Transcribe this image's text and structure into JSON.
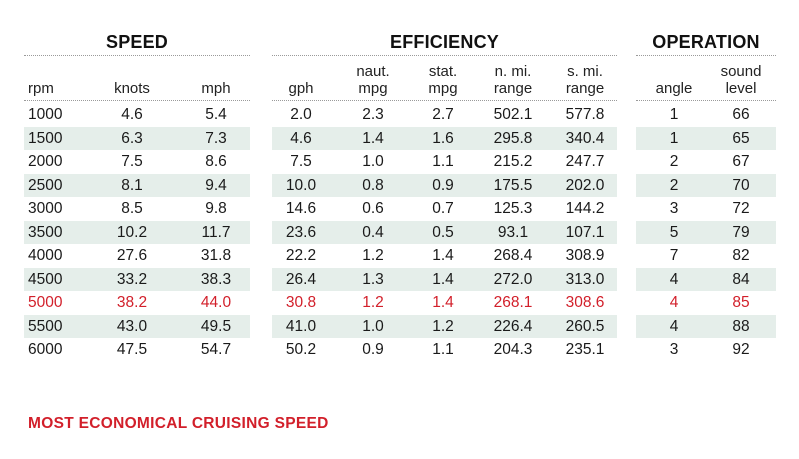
{
  "groups": {
    "speed": "SPEED",
    "efficiency": "EFFICIENCY",
    "operation": "OPERATION"
  },
  "columns": {
    "rpm": [
      "rpm"
    ],
    "knots": [
      "knots"
    ],
    "mph": [
      "mph"
    ],
    "gph": [
      "gph"
    ],
    "naut_mpg": [
      "naut.",
      "mpg"
    ],
    "stat_mpg": [
      "stat.",
      "mpg"
    ],
    "n_mi_range": [
      "n. mi.",
      "range"
    ],
    "s_mi_range": [
      "s. mi.",
      "range"
    ],
    "angle": [
      "angle"
    ],
    "sound_level": [
      "sound",
      "level"
    ]
  },
  "rows": [
    {
      "rpm": "1000",
      "knots": "4.6",
      "mph": "5.4",
      "gph": "2.0",
      "naut_mpg": "2.3",
      "stat_mpg": "2.7",
      "n_mi_range": "502.1",
      "s_mi_range": "577.8",
      "angle": "1",
      "sound_level": "66",
      "highlight": false
    },
    {
      "rpm": "1500",
      "knots": "6.3",
      "mph": "7.3",
      "gph": "4.6",
      "naut_mpg": "1.4",
      "stat_mpg": "1.6",
      "n_mi_range": "295.8",
      "s_mi_range": "340.4",
      "angle": "1",
      "sound_level": "65",
      "highlight": false
    },
    {
      "rpm": "2000",
      "knots": "7.5",
      "mph": "8.6",
      "gph": "7.5",
      "naut_mpg": "1.0",
      "stat_mpg": "1.1",
      "n_mi_range": "215.2",
      "s_mi_range": "247.7",
      "angle": "2",
      "sound_level": "67",
      "highlight": false
    },
    {
      "rpm": "2500",
      "knots": "8.1",
      "mph": "9.4",
      "gph": "10.0",
      "naut_mpg": "0.8",
      "stat_mpg": "0.9",
      "n_mi_range": "175.5",
      "s_mi_range": "202.0",
      "angle": "2",
      "sound_level": "70",
      "highlight": false
    },
    {
      "rpm": "3000",
      "knots": "8.5",
      "mph": "9.8",
      "gph": "14.6",
      "naut_mpg": "0.6",
      "stat_mpg": "0.7",
      "n_mi_range": "125.3",
      "s_mi_range": "144.2",
      "angle": "3",
      "sound_level": "72",
      "highlight": false
    },
    {
      "rpm": "3500",
      "knots": "10.2",
      "mph": "11.7",
      "gph": "23.6",
      "naut_mpg": "0.4",
      "stat_mpg": "0.5",
      "n_mi_range": "93.1",
      "s_mi_range": "107.1",
      "angle": "5",
      "sound_level": "79",
      "highlight": false
    },
    {
      "rpm": "4000",
      "knots": "27.6",
      "mph": "31.8",
      "gph": "22.2",
      "naut_mpg": "1.2",
      "stat_mpg": "1.4",
      "n_mi_range": "268.4",
      "s_mi_range": "308.9",
      "angle": "7",
      "sound_level": "82",
      "highlight": false
    },
    {
      "rpm": "4500",
      "knots": "33.2",
      "mph": "38.3",
      "gph": "26.4",
      "naut_mpg": "1.3",
      "stat_mpg": "1.4",
      "n_mi_range": "272.0",
      "s_mi_range": "313.0",
      "angle": "4",
      "sound_level": "84",
      "highlight": false
    },
    {
      "rpm": "5000",
      "knots": "38.2",
      "mph": "44.0",
      "gph": "30.8",
      "naut_mpg": "1.2",
      "stat_mpg": "1.4",
      "n_mi_range": "268.1",
      "s_mi_range": "308.6",
      "angle": "4",
      "sound_level": "85",
      "highlight": true
    },
    {
      "rpm": "5500",
      "knots": "43.0",
      "mph": "49.5",
      "gph": "41.0",
      "naut_mpg": "1.0",
      "stat_mpg": "1.2",
      "n_mi_range": "226.4",
      "s_mi_range": "260.5",
      "angle": "4",
      "sound_level": "88",
      "highlight": false
    },
    {
      "rpm": "6000",
      "knots": "47.5",
      "mph": "54.7",
      "gph": "50.2",
      "naut_mpg": "0.9",
      "stat_mpg": "1.1",
      "n_mi_range": "204.3",
      "s_mi_range": "235.1",
      "angle": "3",
      "sound_level": "92",
      "highlight": false
    }
  ],
  "footnote": "MOST ECONOMICAL CRUISING SPEED",
  "colors": {
    "highlight": "#d21f2a",
    "row_shade": "#e5eeea",
    "text": "#1a1a1a"
  }
}
